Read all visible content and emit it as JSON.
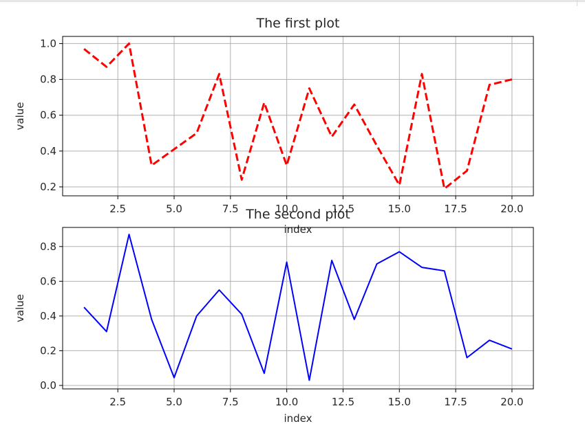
{
  "chart_data": [
    {
      "type": "line",
      "title": "The first plot",
      "xlabel": "index",
      "ylabel": "value",
      "x": [
        1,
        2,
        3,
        4,
        5,
        6,
        7,
        8,
        9,
        10,
        11,
        12,
        13,
        14,
        15,
        16,
        17,
        18,
        19,
        20
      ],
      "series": [
        {
          "values": [
            0.97,
            0.87,
            1.0,
            0.32,
            0.41,
            0.5,
            0.83,
            0.24,
            0.67,
            0.32,
            0.75,
            0.48,
            0.66,
            0.43,
            0.21,
            0.83,
            0.19,
            0.29,
            0.77,
            0.8
          ],
          "color": "#ff0000",
          "style": "dashed"
        }
      ],
      "xlim": [
        0.05,
        20.95
      ],
      "ylim": [
        0.15,
        1.04
      ],
      "xticks": [
        2.5,
        5.0,
        7.5,
        10.0,
        12.5,
        15.0,
        17.5,
        20.0
      ],
      "xtick_labels": [
        "2.5",
        "5.0",
        "7.5",
        "10.0",
        "12.5",
        "15.0",
        "17.5",
        "20.0"
      ],
      "yticks": [
        0.2,
        0.4,
        0.6,
        0.8,
        1.0
      ],
      "ytick_labels": [
        "0.2",
        "0.4",
        "0.6",
        "0.8",
        "1.0"
      ],
      "grid": true
    },
    {
      "type": "line",
      "title": "The second plot",
      "xlabel": "index",
      "ylabel": "value",
      "x": [
        1,
        2,
        3,
        4,
        5,
        6,
        7,
        8,
        9,
        10,
        11,
        12,
        13,
        14,
        15,
        16,
        17,
        18,
        19,
        20
      ],
      "series": [
        {
          "values": [
            0.45,
            0.31,
            0.87,
            0.38,
            0.045,
            0.4,
            0.55,
            0.41,
            0.07,
            0.71,
            0.03,
            0.72,
            0.38,
            0.7,
            0.77,
            0.68,
            0.66,
            0.16,
            0.26,
            0.21
          ],
          "color": "#0000ff",
          "style": "solid"
        }
      ],
      "xlim": [
        0.05,
        20.95
      ],
      "ylim": [
        -0.02,
        0.91
      ],
      "xticks": [
        2.5,
        5.0,
        7.5,
        10.0,
        12.5,
        15.0,
        17.5,
        20.0
      ],
      "xtick_labels": [
        "2.5",
        "5.0",
        "7.5",
        "10.0",
        "12.5",
        "15.0",
        "17.5",
        "20.0"
      ],
      "yticks": [
        0.0,
        0.2,
        0.4,
        0.6,
        0.8
      ],
      "ytick_labels": [
        "0.0",
        "0.2",
        "0.4",
        "0.6",
        "0.8"
      ],
      "grid": true
    }
  ]
}
